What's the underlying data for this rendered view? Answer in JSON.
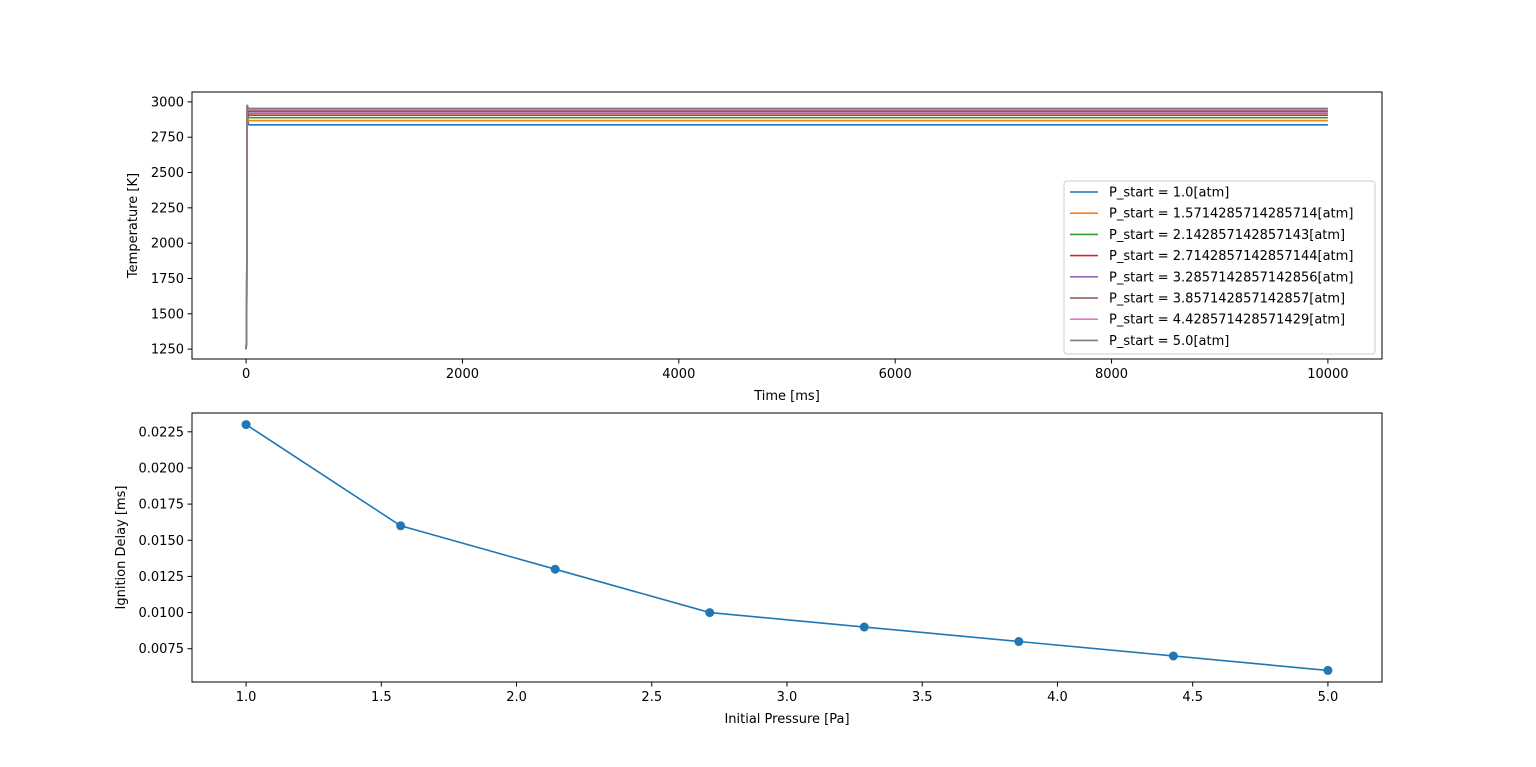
{
  "chart_data": [
    {
      "type": "line",
      "title": "",
      "xlabel": "Time [ms]",
      "ylabel": "Temperature [K]",
      "xlim": [
        -500,
        10500
      ],
      "ylim": [
        1180,
        3070
      ],
      "xticks": [
        "0",
        "2000",
        "4000",
        "6000",
        "8000",
        "10000"
      ],
      "xtick_values": [
        0,
        2000,
        4000,
        6000,
        8000,
        10000
      ],
      "yticks": [
        "1250",
        "1500",
        "1750",
        "2000",
        "2250",
        "2500",
        "2750",
        "3000"
      ],
      "ytick_values": [
        1250,
        1500,
        1750,
        2000,
        2250,
        2500,
        2750,
        3000
      ],
      "legend_position": "center-right",
      "grid": false,
      "x": [
        0,
        5,
        10,
        20,
        30,
        10000
      ],
      "series": [
        {
          "name": "P_start = 1.0[atm]",
          "color": "#1f77b4",
          "values": [
            1250,
            1300,
            2950,
            2840,
            2838,
            2838
          ]
        },
        {
          "name": "P_start = 1.5714285714285714[atm]",
          "color": "#ff7f0e",
          "values": [
            1250,
            1310,
            2960,
            2870,
            2868,
            2868
          ]
        },
        {
          "name": "P_start = 2.142857142857143[atm]",
          "color": "#2ca02c",
          "values": [
            1250,
            1320,
            2965,
            2890,
            2888,
            2888
          ]
        },
        {
          "name": "P_start = 2.7142857142857144[atm]",
          "color": "#d62728",
          "values": [
            1250,
            1330,
            2970,
            2908,
            2906,
            2906
          ]
        },
        {
          "name": "P_start = 3.2857142857142856[atm]",
          "color": "#9467bd",
          "values": [
            1250,
            1340,
            2972,
            2922,
            2920,
            2920
          ]
        },
        {
          "name": "P_start = 3.857142857142857[atm]",
          "color": "#8c564b",
          "values": [
            1250,
            1350,
            2975,
            2935,
            2933,
            2933
          ]
        },
        {
          "name": "P_start = 4.428571428571429[atm]",
          "color": "#e377c2",
          "values": [
            1250,
            1360,
            2978,
            2946,
            2944,
            2944
          ]
        },
        {
          "name": "P_start = 5.0[atm]",
          "color": "#7f7f7f",
          "values": [
            1250,
            1370,
            2980,
            2956,
            2954,
            2954
          ]
        }
      ]
    },
    {
      "type": "line",
      "title": "",
      "xlabel": "Initial Pressure [Pa]",
      "ylabel": "Ignition Delay [ms]",
      "xlim": [
        0.8,
        5.2
      ],
      "ylim": [
        0.0052,
        0.0238
      ],
      "xticks": [
        "1.0",
        "1.5",
        "2.0",
        "2.5",
        "3.0",
        "3.5",
        "4.0",
        "4.5",
        "5.0"
      ],
      "xtick_values": [
        1.0,
        1.5,
        2.0,
        2.5,
        3.0,
        3.5,
        4.0,
        4.5,
        5.0
      ],
      "yticks": [
        "0.0075",
        "0.0100",
        "0.0125",
        "0.0150",
        "0.0175",
        "0.0200",
        "0.0225"
      ],
      "ytick_values": [
        0.0075,
        0.01,
        0.0125,
        0.015,
        0.0175,
        0.02,
        0.0225
      ],
      "grid": false,
      "markers": true,
      "series": [
        {
          "color": "#1f77b4",
          "x": [
            1.0,
            1.5714285714285714,
            2.142857142857143,
            2.7142857142857144,
            3.2857142857142856,
            3.857142857142857,
            4.428571428571429,
            5.0
          ],
          "values": [
            0.023,
            0.016,
            0.013,
            0.01,
            0.009,
            0.008,
            0.007,
            0.006
          ]
        }
      ]
    }
  ]
}
